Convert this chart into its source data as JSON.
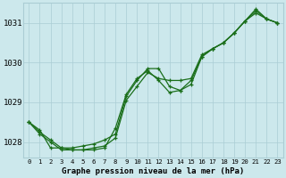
{
  "title": "Graphe pression niveau de la mer (hPa)",
  "background_color": "#cce8ec",
  "grid_color": "#aacdd4",
  "line_color": "#1a6e1a",
  "xlim": [
    -0.5,
    23.5
  ],
  "ylim": [
    1027.6,
    1031.5
  ],
  "yticks": [
    1028,
    1029,
    1030,
    1031
  ],
  "ytick_labels": [
    "1028",
    "1029",
    "1030",
    "1031"
  ],
  "xticks": [
    0,
    1,
    2,
    3,
    4,
    5,
    6,
    7,
    8,
    9,
    10,
    11,
    12,
    13,
    14,
    15,
    16,
    17,
    18,
    19,
    20,
    21,
    22,
    23
  ],
  "xtick_labels": [
    "0",
    "1",
    "2",
    "3",
    "4",
    "5",
    "6",
    "7",
    "8",
    "9",
    "10",
    "11",
    "12",
    "13",
    "14",
    "15",
    "16",
    "17",
    "18",
    "19",
    "20",
    "21",
    "22",
    "23"
  ],
  "series": [
    {
      "x": [
        0,
        1,
        2,
        3,
        4,
        5,
        6,
        7,
        8,
        9,
        10,
        11,
        12,
        13,
        14,
        15,
        16,
        17,
        18,
        19,
        20,
        21,
        22,
        23
      ],
      "y": [
        1028.5,
        1028.3,
        1027.85,
        1027.85,
        1027.85,
        1027.9,
        1027.95,
        1028.05,
        1028.2,
        1029.15,
        1029.55,
        1029.85,
        1029.85,
        1029.4,
        1029.3,
        1029.55,
        1030.15,
        1030.35,
        1030.5,
        1030.75,
        1031.05,
        1031.35,
        1031.1,
        1031.0
      ]
    },
    {
      "x": [
        0,
        1,
        2,
        3,
        4,
        5,
        6,
        7,
        8,
        9,
        10,
        11,
        12,
        13,
        14,
        15,
        16,
        17,
        18,
        19,
        20,
        21,
        22,
        23
      ],
      "y": [
        1028.5,
        1028.25,
        1028.05,
        1027.85,
        1027.8,
        1027.8,
        1027.8,
        1027.85,
        1028.35,
        1029.2,
        1029.6,
        1029.8,
        1029.55,
        1029.25,
        1029.3,
        1029.45,
        1030.15,
        1030.35,
        1030.5,
        1030.75,
        1031.05,
        1031.3,
        1031.1,
        1031.0
      ]
    },
    {
      "x": [
        0,
        1,
        2,
        3,
        4,
        5,
        6,
        7,
        8,
        9,
        10,
        11,
        12,
        13,
        14,
        15,
        16,
        17,
        18,
        19,
        20,
        21,
        22,
        23
      ],
      "y": [
        1028.5,
        1028.2,
        1028.0,
        1027.8,
        1027.8,
        1027.8,
        1027.85,
        1027.9,
        1028.1,
        1029.05,
        1029.4,
        1029.75,
        1029.6,
        1029.55,
        1029.55,
        1029.6,
        1030.2,
        1030.35,
        1030.5,
        1030.75,
        1031.05,
        1031.25,
        1031.1,
        1031.0
      ]
    }
  ],
  "figsize": [
    3.2,
    2.0
  ],
  "dpi": 100,
  "title_fontsize": 6.5,
  "ytick_fontsize": 6.5,
  "xtick_fontsize": 5.2
}
